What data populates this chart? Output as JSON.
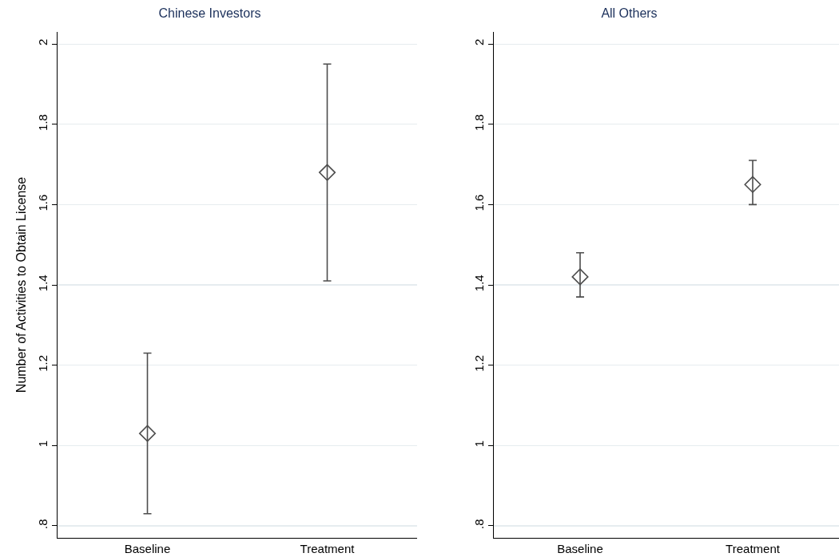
{
  "chart_data": [
    {
      "type": "scatter",
      "title": "Chinese Investors",
      "ylabel": "Number of Activities to Obtain License",
      "categories": [
        "Baseline",
        "Treatment"
      ],
      "series": [
        {
          "color": "#4d4d4d",
          "values": [
            1.03,
            1.68
          ],
          "errors": [
            [
              0.83,
              1.23
            ],
            [
              1.41,
              1.95
            ]
          ]
        }
      ],
      "ylim": [
        0.77,
        2.03
      ],
      "yticks": [
        {
          "value": 0.8,
          "label": ".8"
        },
        1,
        1.2,
        1.4,
        1.6,
        1.8,
        2
      ],
      "grid": "y",
      "marker": "diamond",
      "legend": false
    },
    {
      "type": "scatter",
      "title": "All Others",
      "categories": [
        "Baseline",
        "Treatment"
      ],
      "series": [
        {
          "color": "#4d4d4d",
          "values": [
            1.42,
            1.65
          ],
          "errors": [
            [
              1.37,
              1.48
            ],
            [
              1.6,
              1.71
            ]
          ]
        }
      ],
      "ylim": [
        0.77,
        2.03
      ],
      "yticks": [
        {
          "value": 0.8,
          "label": ".8"
        },
        1,
        1.2,
        1.4,
        1.6,
        1.8,
        2
      ],
      "grid": "y",
      "marker": "diamond",
      "legend": false
    }
  ]
}
